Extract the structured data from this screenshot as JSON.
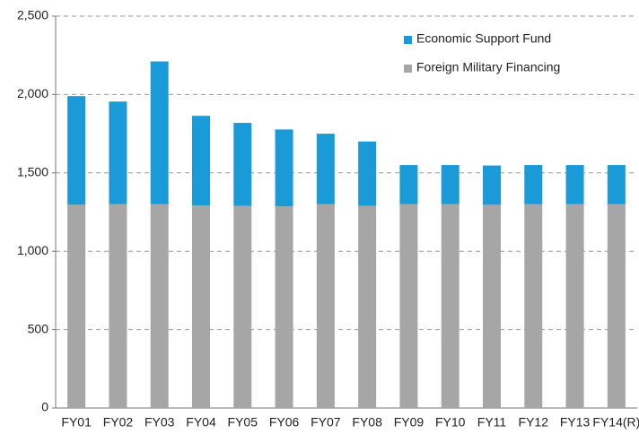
{
  "chart_data": {
    "type": "stacked_bar",
    "categories": [
      "FY01",
      "FY02",
      "FY03",
      "FY04",
      "FY05",
      "FY06",
      "FY07",
      "FY08",
      "FY09",
      "FY10",
      "FY11",
      "FY12",
      "FY13",
      "FY14(R)"
    ],
    "series": [
      {
        "name": "Economic Support Fund",
        "color": "#1a9bd7",
        "values": [
          693,
          655,
          911,
          572,
          530,
          490,
          450,
          411,
          250,
          250,
          250,
          250,
          250,
          250
        ]
      },
      {
        "name": "Foreign Military Financing",
        "color": "#a6a6a6",
        "values": [
          1297,
          1300,
          1300,
          1292,
          1289,
          1287,
          1300,
          1289,
          1300,
          1300,
          1297,
          1300,
          1300,
          1300
        ]
      }
    ],
    "ylim": [
      0,
      2500
    ],
    "yticks": [
      0,
      500,
      {
        "value": 1000,
        "label": "1,000"
      },
      {
        "value": 1500,
        "label": "1,500"
      },
      {
        "value": 2000,
        "label": "2,000"
      },
      {
        "value": 2500,
        "label": "2,500"
      }
    ],
    "grid": true,
    "legend": "top-right"
  }
}
